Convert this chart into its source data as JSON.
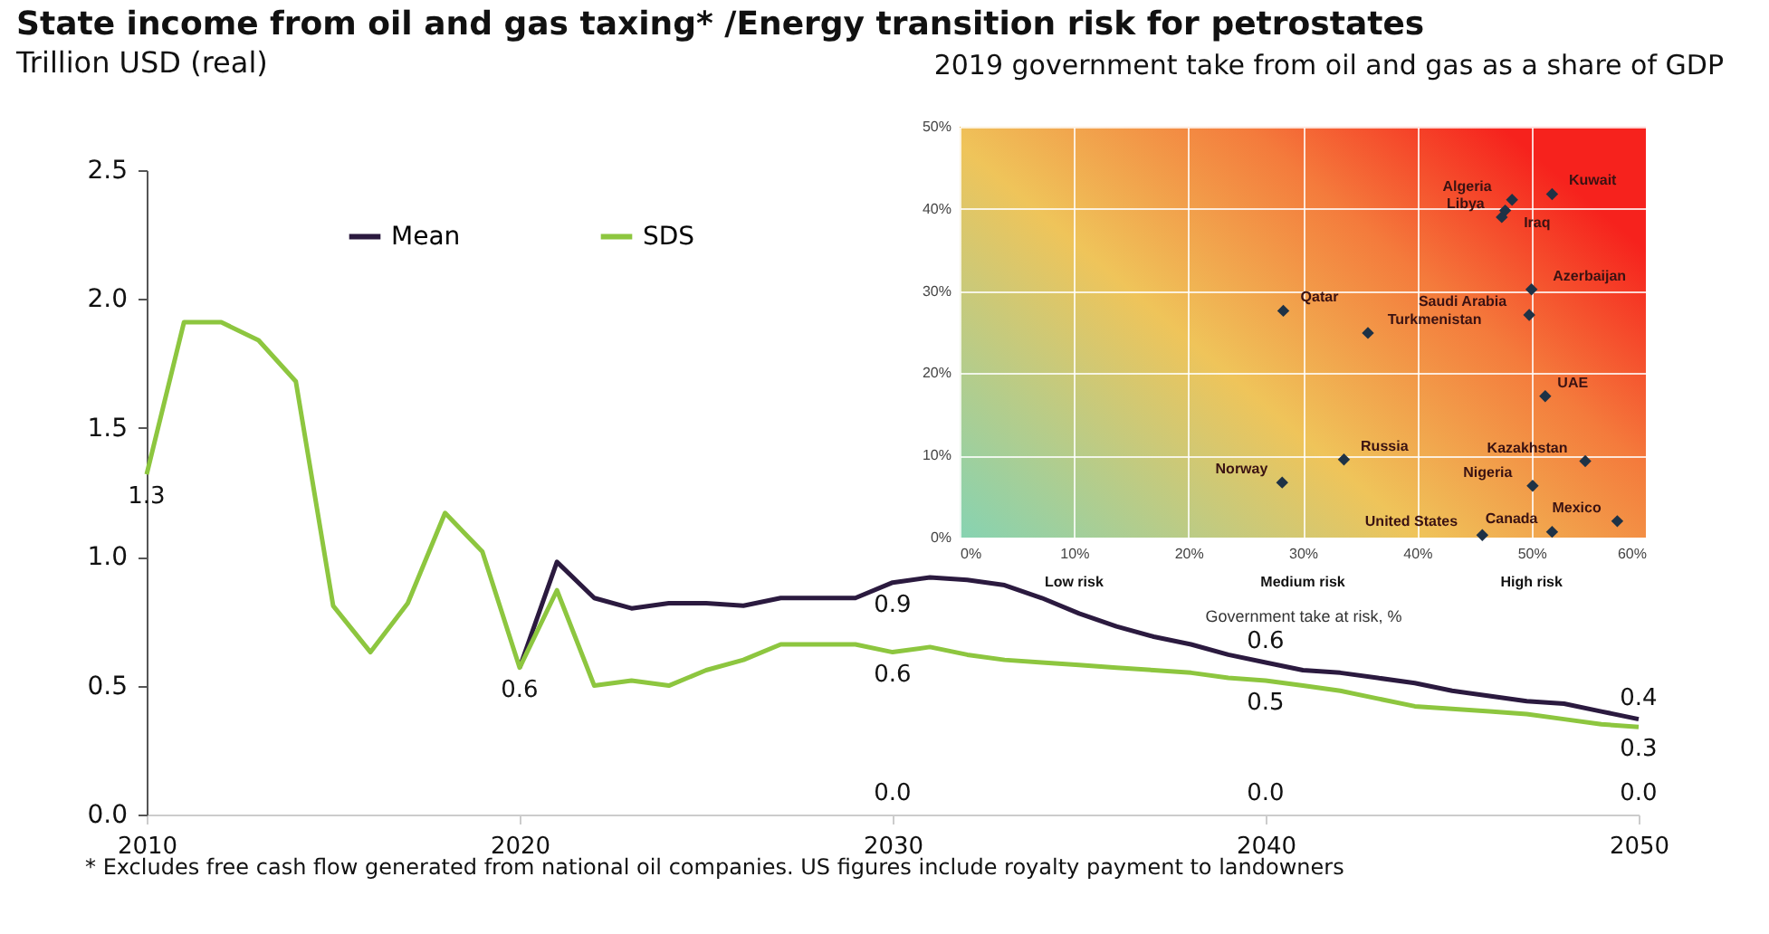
{
  "chart_data": [
    {
      "type": "line",
      "title": "State income from oil and gas taxing* /Energy transition risk for petrostates",
      "subtitle": "Trillion USD (real)",
      "xlim": [
        2010,
        2050
      ],
      "xticks": [
        2010,
        2020,
        2030,
        2040,
        2050
      ],
      "ylim": [
        0,
        2.5
      ],
      "yticks": [
        {
          "value": 0,
          "label": "0.0"
        },
        {
          "value": 0.5,
          "label": "0.5"
        },
        {
          "value": 1,
          "label": "1.0"
        },
        {
          "value": 1.5,
          "label": "1.5"
        },
        {
          "value": 2,
          "label": "2.0"
        },
        {
          "value": 2.5,
          "label": "2.5"
        }
      ],
      "legend": "top left",
      "line_style": "solid",
      "series": [
        {
          "name": "Mean",
          "color": "#2b1a3f",
          "x": [
            2020,
            2021,
            2022,
            2023,
            2024,
            2025,
            2026,
            2027,
            2028,
            2029,
            2030,
            2031,
            2032,
            2033,
            2034,
            2035,
            2036,
            2037,
            2038,
            2039,
            2040,
            2041,
            2042,
            2043,
            2044,
            2045,
            2046,
            2047,
            2048,
            2049,
            2050
          ],
          "values": [
            0.57,
            0.98,
            0.84,
            0.8,
            0.82,
            0.82,
            0.81,
            0.84,
            0.84,
            0.84,
            0.9,
            0.92,
            0.91,
            0.89,
            0.84,
            0.78,
            0.73,
            0.69,
            0.66,
            0.62,
            0.59,
            0.56,
            0.55,
            0.53,
            0.51,
            0.48,
            0.46,
            0.44,
            0.43,
            0.4,
            0.37
          ]
        },
        {
          "name": "SDS",
          "color": "#8dc63f",
          "x": [
            2010,
            2011,
            2012,
            2013,
            2014,
            2015,
            2016,
            2017,
            2018,
            2019,
            2020,
            2021,
            2022,
            2023,
            2024,
            2025,
            2026,
            2027,
            2028,
            2029,
            2030,
            2031,
            2032,
            2033,
            2034,
            2035,
            2036,
            2037,
            2038,
            2039,
            2040,
            2041,
            2042,
            2043,
            2044,
            2045,
            2046,
            2047,
            2048,
            2049,
            2050
          ],
          "values": [
            1.32,
            1.91,
            1.91,
            1.84,
            1.68,
            0.81,
            0.63,
            0.82,
            1.17,
            1.02,
            0.57,
            0.87,
            0.5,
            0.52,
            0.5,
            0.56,
            0.6,
            0.66,
            0.66,
            0.66,
            0.63,
            0.65,
            0.62,
            0.6,
            0.59,
            0.58,
            0.57,
            0.56,
            0.55,
            0.53,
            0.52,
            0.5,
            0.48,
            0.45,
            0.42,
            0.41,
            0.4,
            0.39,
            0.37,
            0.35,
            0.34
          ]
        }
      ],
      "annotations": [
        {
          "text": "1.3",
          "x": 2010,
          "y": 1.32
        },
        {
          "text": "0.6",
          "x": 2020,
          "y": 0.57
        },
        {
          "text": "0.9",
          "x": 2030,
          "y": 0.9
        },
        {
          "text": "0.6",
          "x": 2030,
          "y": 0.63
        },
        "0.0",
        {
          "text": "0.6",
          "x": 2040,
          "y": 0.59
        },
        {
          "text": "0.5",
          "x": 2040,
          "y": 0.52
        },
        "0.0",
        {
          "text": "0.4",
          "x": 2050,
          "y": 0.37
        },
        {
          "text": "0.3",
          "x": 2050,
          "y": 0.34
        },
        "0.0",
        "* Excludes free cash flow generated from national oil companies. US figures include royalty payment to landowners"
      ]
    },
    {
      "type": "scatter",
      "title": "2019 government take from oil and gas as a share of GDP",
      "xlabel": "Government take at risk, %",
      "xlim": [
        0,
        60
      ],
      "xticks": [
        {
          "value": 0,
          "label": "0%"
        },
        {
          "value": 10,
          "label": "10%"
        },
        {
          "value": 20,
          "label": "20%"
        },
        {
          "value": 30,
          "label": "30%"
        },
        {
          "value": 40,
          "label": "40%"
        },
        {
          "value": 50,
          "label": "50%"
        },
        {
          "value": 60,
          "label": "60%"
        }
      ],
      "ylim": [
        0,
        50
      ],
      "yticks": [
        {
          "value": 0,
          "label": "0%"
        },
        {
          "value": 10,
          "label": "10%"
        },
        {
          "value": 20,
          "label": "20%"
        },
        {
          "value": 30,
          "label": "30%"
        },
        {
          "value": 40,
          "label": "40%"
        },
        {
          "value": 50,
          "label": "50%"
        }
      ],
      "grid": true,
      "marker": "diamond",
      "series": [
        {
          "color": "#1e3246",
          "x": [
            51.8,
            48.3,
            47.7,
            47.4,
            50.0,
            49.8,
            28.3,
            35.7,
            51.2,
            33.6,
            54.7,
            28.2,
            50.1,
            57.5,
            51.8,
            45.7
          ],
          "values": [
            41.8,
            41.1,
            39.8,
            39.0,
            30.2,
            27.1,
            27.6,
            24.9,
            17.2,
            9.5,
            9.3,
            6.7,
            6.3,
            2.0,
            0.7,
            0.3
          ]
        }
      ],
      "annotations": [
        {
          "text": "Kuwait",
          "x": 51.8,
          "y": 41.8
        },
        {
          "text": "Algeria",
          "x": 48.3,
          "y": 41.1
        },
        {
          "text": "Iraq",
          "x": 47.7,
          "y": 39.8
        },
        {
          "text": "Libya",
          "x": 47.4,
          "y": 39.0
        },
        {
          "text": "Azerbaijan",
          "x": 50.0,
          "y": 30.2
        },
        {
          "text": "Saudi Arabia",
          "x": 49.8,
          "y": 27.1
        },
        {
          "text": "Qatar",
          "x": 28.3,
          "y": 27.6
        },
        {
          "text": "Turkmenistan",
          "x": 35.7,
          "y": 24.9
        },
        {
          "text": "UAE",
          "x": 51.2,
          "y": 17.2
        },
        {
          "text": "Russia",
          "x": 33.6,
          "y": 9.5
        },
        {
          "text": "Kazakhstan",
          "x": 54.7,
          "y": 9.3
        },
        {
          "text": "Norway",
          "x": 28.2,
          "y": 6.7
        },
        {
          "text": "Nigeria",
          "x": 50.1,
          "y": 6.3
        },
        {
          "text": "Mexico",
          "x": 57.5,
          "y": 2.0
        },
        {
          "text": "Canada",
          "x": 51.8,
          "y": 0.7
        },
        {
          "text": "United States",
          "x": 45.7,
          "y": 0.3
        },
        "Low risk",
        "Medium risk",
        "High risk"
      ]
    }
  ]
}
